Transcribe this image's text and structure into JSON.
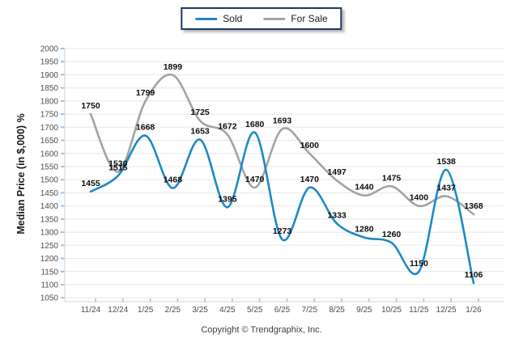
{
  "legend": {
    "items": [
      {
        "label": "Sold",
        "color": "#1e88c7"
      },
      {
        "label": "For Sale",
        "color": "#a3a3a3"
      }
    ],
    "border_color": "#1b3a63",
    "position": "top-center"
  },
  "footer": {
    "text": "Copyright © Trendgraphix, Inc."
  },
  "chart_data": {
    "type": "line",
    "title": "",
    "xlabel": "",
    "ylabel": "Median Price (in $,000) %",
    "categories": [
      "11/24",
      "12/24",
      "1/25",
      "2/25",
      "3/25",
      "4/25",
      "5/25",
      "6/25",
      "7/25",
      "8/25",
      "9/25",
      "10/25",
      "11/25",
      "12/25",
      "1/26"
    ],
    "series": [
      {
        "name": "For Sale",
        "color": "#a3a3a3",
        "values": [
          1750,
          1530,
          1799,
          1899,
          1725,
          1672,
          1470,
          1693,
          1600,
          1497,
          1440,
          1475,
          1400,
          1437,
          1368
        ]
      },
      {
        "name": "Sold",
        "color": "#1e88c7",
        "values": [
          1455,
          1515,
          1668,
          1468,
          1653,
          1395,
          1680,
          1273,
          1470,
          1333,
          1280,
          1260,
          1150,
          1538,
          1106
        ]
      }
    ],
    "ylim": [
      1050,
      2000
    ],
    "ytick_step": 50,
    "grid": "horizontal",
    "smooth": true,
    "data_labels": true,
    "legend_position": "top-center",
    "colors": {
      "gridline": "#e7e7e7",
      "axis_line": "#ccd6dd",
      "tick_mark": "#9cc3e8",
      "tick_label": "#4d4d4d",
      "data_label": "#0d0d0d",
      "axis_title": "#1a1a1a"
    }
  }
}
